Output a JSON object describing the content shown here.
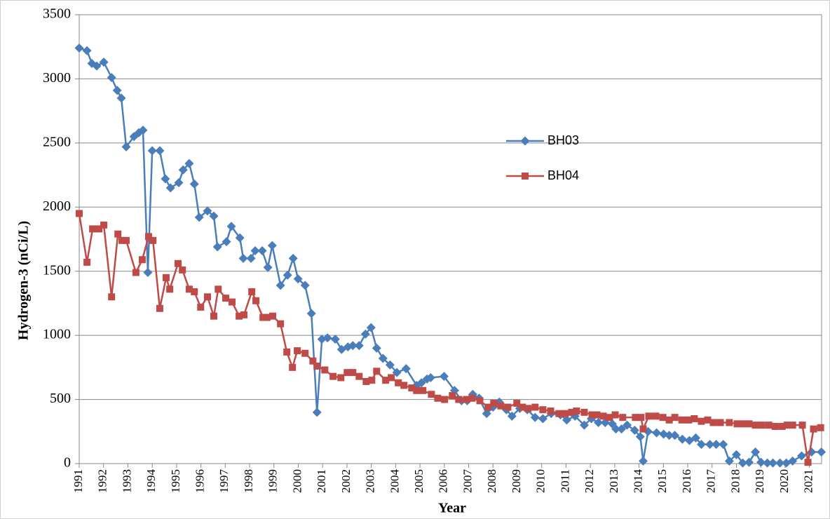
{
  "chart_data": {
    "type": "line",
    "y_label": "Hydrogen-3 (nCi/L)",
    "x_label": "Year",
    "xlim": [
      1991,
      2021.5
    ],
    "xticks": [
      1991,
      1992,
      1993,
      1994,
      1995,
      1996,
      1997,
      1998,
      1999,
      2000,
      2001,
      2002,
      2003,
      2004,
      2005,
      2006,
      2007,
      2008,
      2009,
      2010,
      2011,
      2012,
      2013,
      2014,
      2015,
      2016,
      2017,
      2018,
      2019,
      2020,
      2021
    ],
    "ylim": [
      0,
      3500
    ],
    "yticks": [
      0,
      500,
      1000,
      1500,
      2000,
      2500,
      3000,
      3500
    ],
    "grid": true,
    "series": [
      {
        "name": "BH03",
        "color": "#4a7ebb",
        "marker": "diamond",
        "x": [
          1991.0,
          1991.32,
          1991.52,
          1991.72,
          1992.01,
          1992.33,
          1992.56,
          1992.73,
          1992.93,
          1993.25,
          1993.45,
          1993.62,
          1993.82,
          1994.0,
          1994.31,
          1994.54,
          1994.75,
          1995.09,
          1995.27,
          1995.52,
          1995.73,
          1995.93,
          1996.27,
          1996.53,
          1996.68,
          1997.05,
          1997.25,
          1997.6,
          1997.74,
          1998.06,
          1998.23,
          1998.52,
          1998.75,
          1998.93,
          1999.27,
          1999.56,
          1999.79,
          1999.99,
          2000.28,
          2000.54,
          2000.77,
          2000.97,
          2001.2,
          2001.52,
          2001.78,
          2002.04,
          2002.24,
          2002.5,
          2002.76,
          2002.99,
          2003.22,
          2003.48,
          2003.77,
          2004.05,
          2004.43,
          2004.86,
          2005.06,
          2005.29,
          2005.44,
          2005.99,
          2006.42,
          2006.71,
          2006.94,
          2007.17,
          2007.43,
          2007.74,
          2008.0,
          2008.26,
          2008.55,
          2008.78,
          2009.1,
          2009.41,
          2009.73,
          2010.05,
          2010.39,
          2010.77,
          2011.03,
          2011.37,
          2011.75,
          2012.04,
          2012.33,
          2012.61,
          2012.9,
          2013.05,
          2013.28,
          2013.51,
          2013.82,
          2014.05,
          2014.17,
          2014.37,
          2014.72,
          2015.01,
          2015.24,
          2015.47,
          2015.78,
          2016.07,
          2016.33,
          2016.56,
          2016.91,
          2017.17,
          2017.46,
          2017.71,
          2018.0,
          2018.26,
          2018.52,
          2018.78,
          2019.01,
          2019.27,
          2019.5,
          2019.79,
          2020.05,
          2020.31,
          2020.68,
          2021.09,
          2021.49
        ],
        "values": [
          3240,
          3220,
          3120,
          3100,
          3130,
          3010,
          2910,
          2850,
          2470,
          2550,
          2580,
          2600,
          1490,
          2440,
          2440,
          2220,
          2150,
          2190,
          2290,
          2340,
          2180,
          1920,
          1970,
          1930,
          1690,
          1730,
          1850,
          1760,
          1600,
          1600,
          1660,
          1660,
          1530,
          1700,
          1390,
          1470,
          1600,
          1440,
          1390,
          1170,
          400,
          970,
          980,
          970,
          890,
          910,
          920,
          920,
          1010,
          1060,
          900,
          820,
          770,
          710,
          740,
          610,
          630,
          660,
          670,
          680,
          570,
          490,
          490,
          540,
          510,
          390,
          440,
          480,
          420,
          370,
          430,
          420,
          360,
          350,
          390,
          380,
          340,
          370,
          300,
          350,
          320,
          320,
          310,
          270,
          270,
          300,
          260,
          210,
          20,
          250,
          240,
          230,
          220,
          220,
          190,
          180,
          200,
          150,
          150,
          150,
          150,
          20,
          70,
          5,
          10,
          90,
          10,
          5,
          5,
          5,
          5,
          20,
          60,
          90,
          90
        ]
      },
      {
        "name": "BH04",
        "color": "#be4b48",
        "marker": "square",
        "x": [
          1991.0,
          1991.32,
          1991.55,
          1991.81,
          1992.01,
          1992.33,
          1992.59,
          1992.76,
          1992.93,
          1993.33,
          1993.59,
          1993.85,
          1994.03,
          1994.31,
          1994.57,
          1994.72,
          1995.06,
          1995.24,
          1995.52,
          1995.73,
          1995.99,
          1996.27,
          1996.53,
          1996.71,
          1997.02,
          1997.28,
          1997.57,
          1997.77,
          1998.09,
          1998.26,
          1998.55,
          1998.72,
          1998.95,
          1999.27,
          1999.53,
          1999.76,
          1999.96,
          2000.28,
          2000.6,
          2000.77,
          2001.09,
          2001.43,
          2001.75,
          2002.01,
          2002.24,
          2002.5,
          2002.79,
          2003.02,
          2003.22,
          2003.59,
          2003.82,
          2004.11,
          2004.34,
          2004.66,
          2004.86,
          2005.12,
          2005.47,
          2005.73,
          2006.01,
          2006.33,
          2006.59,
          2006.91,
          2007.14,
          2007.46,
          2007.8,
          2008.03,
          2008.32,
          2008.61,
          2008.98,
          2009.21,
          2009.44,
          2009.73,
          2010.05,
          2010.37,
          2010.71,
          2010.97,
          2011.23,
          2011.43,
          2011.75,
          2012.07,
          2012.27,
          2012.53,
          2012.79,
          2013.02,
          2013.33,
          2013.85,
          2014.08,
          2014.17,
          2014.4,
          2014.69,
          2014.98,
          2015.24,
          2015.47,
          2015.76,
          2016.04,
          2016.27,
          2016.56,
          2016.82,
          2017.05,
          2017.34,
          2017.71,
          2018.03,
          2018.29,
          2018.52,
          2018.78,
          2019.04,
          2019.33,
          2019.59,
          2019.88,
          2020.08,
          2020.31,
          2020.71,
          2020.94,
          2021.17,
          2021.46
        ],
        "values": [
          1950,
          1570,
          1830,
          1830,
          1860,
          1300,
          1790,
          1740,
          1740,
          1490,
          1590,
          1770,
          1740,
          1210,
          1450,
          1360,
          1560,
          1510,
          1360,
          1340,
          1220,
          1300,
          1150,
          1360,
          1290,
          1260,
          1150,
          1160,
          1340,
          1270,
          1140,
          1140,
          1150,
          1090,
          870,
          750,
          880,
          860,
          800,
          760,
          730,
          680,
          670,
          710,
          710,
          680,
          640,
          650,
          720,
          650,
          670,
          630,
          610,
          590,
          570,
          570,
          540,
          510,
          500,
          530,
          500,
          500,
          510,
          490,
          440,
          470,
          450,
          440,
          470,
          440,
          430,
          440,
          420,
          410,
          390,
          390,
          400,
          410,
          400,
          380,
          380,
          370,
          360,
          380,
          360,
          360,
          360,
          270,
          370,
          370,
          360,
          340,
          360,
          340,
          340,
          350,
          330,
          340,
          320,
          320,
          320,
          310,
          310,
          310,
          300,
          300,
          300,
          290,
          290,
          300,
          300,
          300,
          10,
          270,
          280
        ]
      }
    ]
  }
}
